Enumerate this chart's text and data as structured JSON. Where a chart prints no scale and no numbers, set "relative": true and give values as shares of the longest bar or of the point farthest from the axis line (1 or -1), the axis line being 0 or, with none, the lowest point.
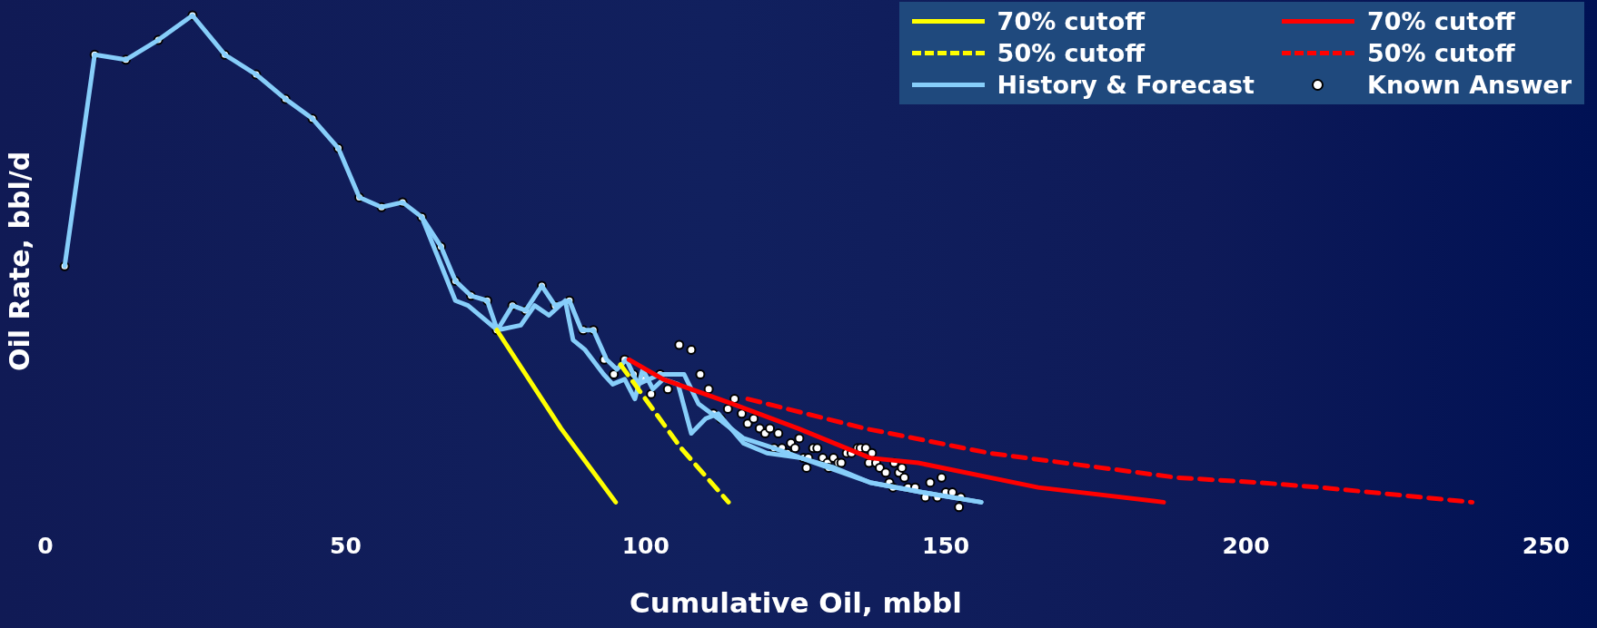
{
  "chart_data": {
    "type": "line",
    "xlabel": "Cumulative Oil, mbbl",
    "ylabel": "Oil Rate, bbl/d",
    "relative": true,
    "xlim": [
      0,
      250
    ],
    "xticks": [
      0,
      50,
      100,
      150,
      200,
      250
    ],
    "legend": "top right",
    "marker": "none",
    "series": [
      {
        "name": "70% cutoff",
        "color": "#ffff00",
        "line_style": "solid",
        "x": [
          75.2,
          85.9,
          95.0
        ],
        "values": [
          0.36,
          0.16,
          0.01
        ]
      },
      {
        "name": "70% cutoff",
        "color": "#ff0000",
        "line_style": "solid",
        "x": [
          97.2,
          102.9,
          114.5,
          125.4,
          137.4,
          145.4,
          165.4,
          186.3
        ],
        "values": [
          0.3,
          0.26,
          0.21,
          0.16,
          0.1,
          0.09,
          0.04,
          0.01
        ]
      },
      {
        "name": "50% cutoff",
        "color": "#ffff00",
        "line_style": "dashed",
        "x": [
          95.8,
          105.9,
          113.8
        ],
        "values": [
          0.29,
          0.12,
          0.01
        ]
      },
      {
        "name": "50% cutoff",
        "color": "#ff0000",
        "line_style": "dashed",
        "x": [
          117.0,
          136.5,
          157.2,
          188.5,
          202.1,
          212.5,
          237.7
        ],
        "values": [
          0.22,
          0.16,
          0.11,
          0.06,
          0.05,
          0.04,
          0.01
        ]
      },
      {
        "name": "History & Forecast",
        "color": "#87cefa",
        "line_style": "solid",
        "x": [
          3.2,
          8.2,
          13.4,
          18.8,
          24.5,
          29.9,
          35.1,
          40.0,
          44.5,
          48.8,
          52.3,
          56.0,
          59.5,
          62.7,
          65.9,
          68.3,
          70.9,
          73.6,
          75.3,
          77.8,
          80.0,
          82.7,
          84.9,
          87.3,
          89.3,
          91.3,
          93.5,
          95.2,
          96.8,
          98.7,
          102.4,
          106.4,
          108.8,
          112.1,
          116.3,
          121.4,
          125.9,
          131.5,
          137.4,
          146.1,
          155.9
        ],
        "values": [
          0.49,
          0.92,
          0.91,
          0.95,
          1.0,
          0.92,
          0.88,
          0.83,
          0.79,
          0.73,
          0.63,
          0.61,
          0.62,
          0.59,
          0.53,
          0.46,
          0.43,
          0.42,
          0.36,
          0.41,
          0.4,
          0.45,
          0.41,
          0.42,
          0.36,
          0.36,
          0.3,
          0.28,
          0.3,
          0.25,
          0.27,
          0.27,
          0.21,
          0.18,
          0.14,
          0.12,
          0.1,
          0.08,
          0.05,
          0.03,
          0.01
        ]
      },
      {
        "color": "#87cefa",
        "line_style": "solid",
        "x": [
          62.7,
          68.3,
          70.4,
          75.3,
          79.2,
          81.5,
          83.9,
          86.6,
          87.9,
          89.9,
          93.0,
          94.5,
          96.5,
          98.2,
          99.5,
          101.2,
          102.9,
          105.4,
          107.6,
          110.0,
          112.1,
          116.3,
          120.2,
          125.9,
          137.4,
          146.1,
          155.9
        ],
        "values": [
          0.59,
          0.42,
          0.41,
          0.36,
          0.37,
          0.41,
          0.39,
          0.42,
          0.34,
          0.32,
          0.27,
          0.25,
          0.26,
          0.22,
          0.28,
          0.24,
          0.26,
          0.25,
          0.15,
          0.18,
          0.19,
          0.13,
          0.11,
          0.1,
          0.05,
          0.03,
          0.01
        ]
      },
      {
        "name": "Known Answer",
        "type": "scatter",
        "marker": "circle",
        "color": "#ffffff",
        "x": [
          3.2,
          8.2,
          13.4,
          18.8,
          24.5,
          29.9,
          35.1,
          40.0,
          44.5,
          48.8,
          52.3,
          56.0,
          59.5,
          62.7,
          65.9,
          68.3,
          70.9,
          73.6,
          75.2,
          77.8,
          80.0,
          82.7,
          84.9,
          87.3,
          89.6,
          91.3,
          93.1,
          94.7,
          96.5,
          98.0,
          99.5,
          100.9,
          102.4,
          103.7,
          105.6,
          107.6,
          109.1,
          110.5,
          111.3,
          112.5,
          113.7,
          114.8,
          116.0,
          117.0,
          118.0,
          119.0,
          119.9,
          120.7,
          122.1,
          121.4,
          122.7,
          123.6,
          124.2,
          124.9,
          125.6,
          126.3,
          126.8,
          127.1,
          127.9,
          128.6,
          129.5,
          130.3,
          130.5,
          131.3,
          132.1,
          132.6,
          133.5,
          134.3,
          135.3,
          135.8,
          136.7,
          137.2,
          137.7,
          138.4,
          139.0,
          140.0,
          140.6,
          141.2,
          141.4,
          142.2,
          142.7,
          143.1,
          143.7,
          144.9,
          146.6,
          147.4,
          148.6,
          149.3,
          150.0,
          151.1,
          152.2,
          152.5
        ],
        "values": [
          0.49,
          0.92,
          0.91,
          0.95,
          1.0,
          0.92,
          0.88,
          0.83,
          0.79,
          0.73,
          0.63,
          0.61,
          0.62,
          0.59,
          0.53,
          0.46,
          0.43,
          0.42,
          0.36,
          0.41,
          0.4,
          0.45,
          0.41,
          0.42,
          0.36,
          0.36,
          0.3,
          0.27,
          0.3,
          0.27,
          0.26,
          0.23,
          0.27,
          0.24,
          0.33,
          0.32,
          0.27,
          0.24,
          0.19,
          0.18,
          0.2,
          0.22,
          0.19,
          0.17,
          0.18,
          0.16,
          0.15,
          0.16,
          0.15,
          0.12,
          0.12,
          0.11,
          0.13,
          0.12,
          0.14,
          0.1,
          0.08,
          0.1,
          0.12,
          0.12,
          0.1,
          0.09,
          0.08,
          0.1,
          0.09,
          0.09,
          0.11,
          0.11,
          0.12,
          0.12,
          0.12,
          0.09,
          0.11,
          0.09,
          0.08,
          0.07,
          0.05,
          0.04,
          0.09,
          0.07,
          0.08,
          0.06,
          0.04,
          0.04,
          0.02,
          0.05,
          0.02,
          0.06,
          0.03,
          0.03,
          0.0,
          0.02
        ]
      }
    ]
  }
}
